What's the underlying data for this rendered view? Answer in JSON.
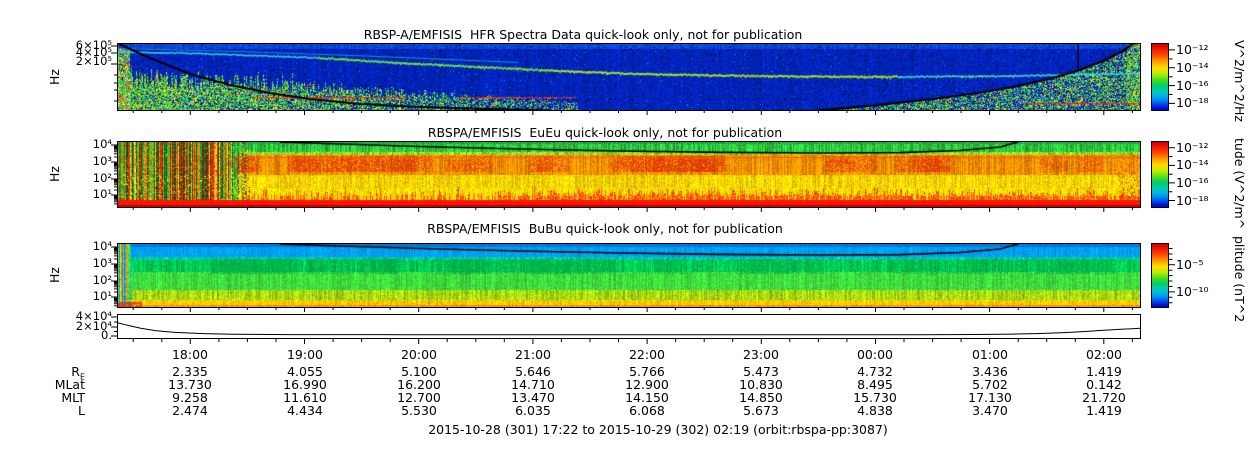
{
  "panels": [
    {
      "key": "hfr",
      "title": "RBSP-A/EMFISIS  HFR Spectra Data quick-look only, not for publication",
      "ylabel": "Hz",
      "ytick_labels": [
        "6×10⁵",
        "4×10⁵",
        "2×10⁵"
      ],
      "colorbar": {
        "tick_labels": [
          "10⁻¹²",
          "10⁻¹⁴",
          "10⁻¹⁶",
          "10⁻¹⁸"
        ],
        "unit": "V^2/m^2/Hz"
      }
    },
    {
      "key": "eueu",
      "title": "RBSPA/EMFISIS  EuEu quick-look only, not for publication",
      "ylabel": "Hz",
      "ytick_labels": [
        "10⁴",
        "10³",
        "10²",
        "10¹"
      ],
      "colorbar": {
        "tick_labels": [
          "10⁻¹²",
          "10⁻¹⁴",
          "10⁻¹⁶",
          "10⁻¹⁸"
        ],
        "unit": "tude (V^2/m^"
      }
    },
    {
      "key": "bubu",
      "title": "RBSPA/EMFISIS  BuBu quick-look only, not for publication",
      "ylabel": "Hz",
      "ytick_labels": [
        "10⁴",
        "10³",
        "10²",
        "10¹"
      ],
      "colorbar": {
        "tick_labels": [
          "10⁻⁵",
          "10⁻¹⁰"
        ],
        "unit": "plitude (nT^2"
      }
    }
  ],
  "lineplot": {
    "ytick_labels": [
      "4×10⁴",
      "2×10⁴",
      "0."
    ]
  },
  "xaxis": {
    "hour_labels": [
      "18:00",
      "19:00",
      "20:00",
      "21:00",
      "22:00",
      "23:00",
      "00:00",
      "01:00",
      "02:00"
    ],
    "start": "17:22",
    "end": "02:19",
    "start_offset_min": 38,
    "total_min": 537
  },
  "ephemeris": {
    "rows": [
      {
        "label": "R",
        "sub": "E",
        "values": [
          "2.335",
          "4.055",
          "5.100",
          "5.646",
          "5.766",
          "5.473",
          "4.732",
          "3.436",
          "1.419"
        ]
      },
      {
        "label": "MLat",
        "values": [
          "13.730",
          "16.990",
          "16.200",
          "14.710",
          "12.900",
          "10.830",
          "8.495",
          "5.702",
          "0.142"
        ]
      },
      {
        "label": "MLT",
        "values": [
          "9.258",
          "11.610",
          "12.700",
          "13.470",
          "14.150",
          "14.850",
          "15.730",
          "17.130",
          "21.720"
        ]
      },
      {
        "label": "L",
        "values": [
          "2.474",
          "4.434",
          "5.530",
          "6.035",
          "6.068",
          "5.673",
          "4.838",
          "3.470",
          "1.419"
        ]
      }
    ]
  },
  "footer": "2015-10-28 (301) 17:22 to 2015-10-29 (302) 02:19 (orbit:rbspa-pp:3087)",
  "colorbar_gradient": [
    [
      0,
      "#cc0000"
    ],
    [
      0.06,
      "#ee1100"
    ],
    [
      0.16,
      "#ff4400"
    ],
    [
      0.26,
      "#ff9900"
    ],
    [
      0.36,
      "#ffdd00"
    ],
    [
      0.45,
      "#bbee00"
    ],
    [
      0.55,
      "#44dd22"
    ],
    [
      0.63,
      "#00cc66"
    ],
    [
      0.7,
      "#00ccaa"
    ],
    [
      0.77,
      "#00bbdd"
    ],
    [
      0.83,
      "#0099ee"
    ],
    [
      0.9,
      "#0055ee"
    ],
    [
      0.95,
      "#0022dd"
    ],
    [
      1,
      "#0000bb"
    ]
  ],
  "chart_data": [
    {
      "type": "heatmap",
      "key": "hfr",
      "title": "RBSP-A/EMFISIS  HFR Spectra Data quick-look only, not for publication",
      "x_range": [
        "17:22",
        "02:19"
      ],
      "y_axis": {
        "unit": "Hz",
        "scale": "log",
        "tick_labels": [
          "6×10⁵",
          "4×10⁵",
          "2×10⁵"
        ]
      },
      "colorbar": {
        "unit": "V^2/m^2/Hz",
        "tick_labels": [
          "10⁻¹²",
          "10⁻¹⁴",
          "10⁻¹⁶",
          "10⁻¹⁸"
        ]
      },
      "render": {
        "seed": 11,
        "bands": [
          [
            0,
            5,
            "#0b46d8",
            0.15,
            0.2
          ],
          [
            5,
            66,
            "#0224bb",
            0.1,
            0.25
          ]
        ],
        "uh_line": {
          "pts": [
            [
              0,
              8
            ],
            [
              60,
              9
            ],
            [
              120,
              11
            ],
            [
              200,
              14
            ],
            [
              280,
              19
            ],
            [
              360,
              23
            ],
            [
              440,
              27
            ],
            [
              520,
              30
            ],
            [
              600,
              31.5
            ],
            [
              680,
              32.5
            ],
            [
              760,
              33
            ],
            [
              840,
              32.5
            ],
            [
              900,
              32
            ],
            [
              960,
              30.5
            ],
            [
              1022,
              29.5
            ]
          ],
          "segs": [
            [
              0,
              200,
              "#2fd4e8",
              1.6
            ],
            [
              200,
              430,
              "#66e23a",
              2
            ],
            [
              430,
              780,
              "#9fe61c",
              2
            ],
            [
              780,
              1022,
              "#3bd8c4",
              1.7
            ]
          ],
          "upper": {
            "pts": [
              [
                0,
                4
              ],
              [
                120,
                7
              ],
              [
                260,
                12
              ],
              [
                400,
                18
              ]
            ],
            "color": "#1b8fd0"
          }
        },
        "fce_desc": [
          [
            1,
            0
          ],
          [
            32,
            14
          ],
          [
            72,
            30
          ],
          [
            112,
            41
          ],
          [
            152,
            49
          ],
          [
            192,
            55
          ],
          [
            242,
            60
          ],
          [
            302,
            63
          ],
          [
            372,
            65
          ],
          [
            430,
            66.5
          ]
        ],
        "fce_rise": [
          [
            695,
            67
          ],
          [
            760,
            61
          ],
          [
            815,
            55
          ],
          [
            860,
            49
          ],
          [
            900,
            42
          ],
          [
            935,
            34
          ],
          [
            962,
            26
          ],
          [
            985,
            17
          ],
          [
            1005,
            7
          ],
          [
            1016,
            -1
          ]
        ],
        "fce_vline": [
          960,
          0,
          27
        ],
        "red_dashes": [
          [
            135,
            290,
            53
          ],
          [
            343,
            460,
            53
          ],
          [
            905,
            1022,
            59
          ]
        ],
        "left_column_w": 12,
        "bottom_noise": {
          "xmax": 460,
          "base_h": 8,
          "var_h": 38
        },
        "right_noise": {
          "x0": 690,
          "edge_x": 1008
        },
        "dark_speckle": 0.03,
        "cyan_speckle": 0.006
      }
    },
    {
      "type": "heatmap",
      "key": "eueu",
      "title": "RBSPA/EMFISIS  EuEu quick-look only, not for publication",
      "x_range": [
        "17:22",
        "02:19"
      ],
      "y_axis": {
        "unit": "Hz",
        "scale": "log",
        "tick_labels": [
          "10⁴",
          "10³",
          "10²",
          "10¹"
        ]
      },
      "colorbar": {
        "unit": "tude (V^2/m^",
        "tick_labels": [
          "10⁻¹²",
          "10⁻¹⁴",
          "10⁻¹⁶",
          "10⁻¹⁸"
        ]
      },
      "render": {
        "seed": 22,
        "bands": [
          [
            0,
            2,
            "#1faa3c",
            0.1,
            0.15
          ],
          [
            2,
            10,
            "#2cc83e",
            0.25,
            0.2
          ],
          [
            10,
            13,
            "#9cd822",
            0.2,
            0.2
          ],
          [
            13,
            33,
            "#ff9100",
            0.22,
            0.18
          ],
          [
            33,
            46,
            "#ffd400",
            0.15,
            0.18
          ],
          [
            46,
            58,
            "#ffdd00",
            0.12,
            0.15
          ],
          [
            58,
            63,
            "#ff1500",
            0.03,
            0.05
          ],
          [
            63,
            65,
            "#cc0000",
            0.02,
            0.04
          ]
        ],
        "fce": [
          [
            162,
            0
          ],
          [
            222,
            2
          ],
          [
            302,
            4.5
          ],
          [
            402,
            7
          ],
          [
            502,
            9
          ],
          [
            602,
            10.3
          ],
          [
            702,
            11
          ],
          [
            782,
            10.6
          ],
          [
            842,
            8.5
          ],
          [
            882,
            5
          ],
          [
            900,
            0
          ]
        ],
        "left_chaos_w": 112,
        "left_fade_w": 22,
        "red_blobs": {
          "count": 34,
          "y0": 14,
          "y1": 30
        },
        "orange_line_y": 15,
        "spike_row": {
          "y0": 46,
          "y1": 58
        },
        "right_speckle_x": 1000
      }
    },
    {
      "type": "heatmap",
      "key": "bubu",
      "title": "RBSPA/EMFISIS  BuBu quick-look only, not for publication",
      "x_range": [
        "17:22",
        "02:19"
      ],
      "y_axis": {
        "unit": "Hz",
        "scale": "log",
        "tick_labels": [
          "10⁴",
          "10³",
          "10²",
          "10¹"
        ]
      },
      "colorbar": {
        "unit": "plitude (nT^2",
        "tick_labels": [
          "10⁻⁵",
          "10⁻¹⁰"
        ]
      },
      "render": {
        "seed": 33,
        "bands": [
          [
            0,
            3,
            "#0077dd",
            0.05,
            0.1
          ],
          [
            3,
            13,
            "#00a0f5",
            0.1,
            0.12
          ],
          [
            13,
            16,
            "#00c9a0",
            0.12,
            0.15
          ],
          [
            16,
            28,
            "#00c855",
            0.15,
            0.15
          ],
          [
            28,
            46,
            "#3edc3e",
            0.12,
            0.15
          ],
          [
            46,
            56,
            "#a8dc14",
            0.18,
            0.18
          ],
          [
            56,
            61,
            "#ffcc00",
            0.12,
            0.15
          ],
          [
            61,
            63,
            "#ff9900",
            0.1,
            0.12
          ]
        ],
        "fce": [
          [
            162,
            0
          ],
          [
            222,
            2
          ],
          [
            302,
            4.5
          ],
          [
            402,
            7
          ],
          [
            502,
            9
          ],
          [
            602,
            10.3
          ],
          [
            702,
            11
          ],
          [
            782,
            10.6
          ],
          [
            842,
            8.5
          ],
          [
            882,
            5
          ],
          [
            900,
            0
          ]
        ],
        "left_stripes_w": 13,
        "green_blobs": {
          "count": 30,
          "y0": 15,
          "y1": 30
        },
        "corner_red": {
          "w": 24,
          "y0": 58
        }
      }
    },
    {
      "type": "line",
      "name": "bottom-line-trace",
      "ylim": [
        0,
        45000
      ],
      "ytick_labels": [
        "4×10⁴",
        "2×10⁴",
        "0."
      ],
      "points": [
        [
          0,
          28000
        ],
        [
          5,
          23000
        ],
        [
          12,
          17000
        ],
        [
          20,
          12000
        ],
        [
          30,
          8500
        ],
        [
          45,
          6000
        ],
        [
          60,
          4800
        ],
        [
          90,
          4000
        ],
        [
          150,
          3600
        ],
        [
          240,
          3500
        ],
        [
          360,
          3500
        ],
        [
          420,
          3500
        ],
        [
          450,
          4200
        ],
        [
          470,
          5000
        ],
        [
          485,
          6200
        ],
        [
          497,
          8000
        ],
        [
          507,
          10000
        ],
        [
          517,
          12500
        ],
        [
          527,
          15000
        ],
        [
          533,
          16000
        ],
        [
          537,
          17000
        ]
      ]
    },
    {
      "type": "table",
      "columns": [
        "18:00",
        "19:00",
        "20:00",
        "21:00",
        "22:00",
        "23:00",
        "00:00",
        "01:00",
        "02:00"
      ],
      "rows": [
        {
          "label": "RE",
          "values": [
            "2.335",
            "4.055",
            "5.100",
            "5.646",
            "5.766",
            "5.473",
            "4.732",
            "3.436",
            "1.419"
          ]
        },
        {
          "label": "MLat",
          "values": [
            "13.730",
            "16.990",
            "16.200",
            "14.710",
            "12.900",
            "10.830",
            "8.495",
            "5.702",
            "0.142"
          ]
        },
        {
          "label": "MLT",
          "values": [
            "9.258",
            "11.610",
            "12.700",
            "13.470",
            "14.150",
            "14.850",
            "15.730",
            "17.130",
            "21.720"
          ]
        },
        {
          "label": "L",
          "values": [
            "2.474",
            "4.434",
            "5.530",
            "6.035",
            "6.068",
            "5.673",
            "4.838",
            "3.470",
            "1.419"
          ]
        }
      ]
    }
  ]
}
